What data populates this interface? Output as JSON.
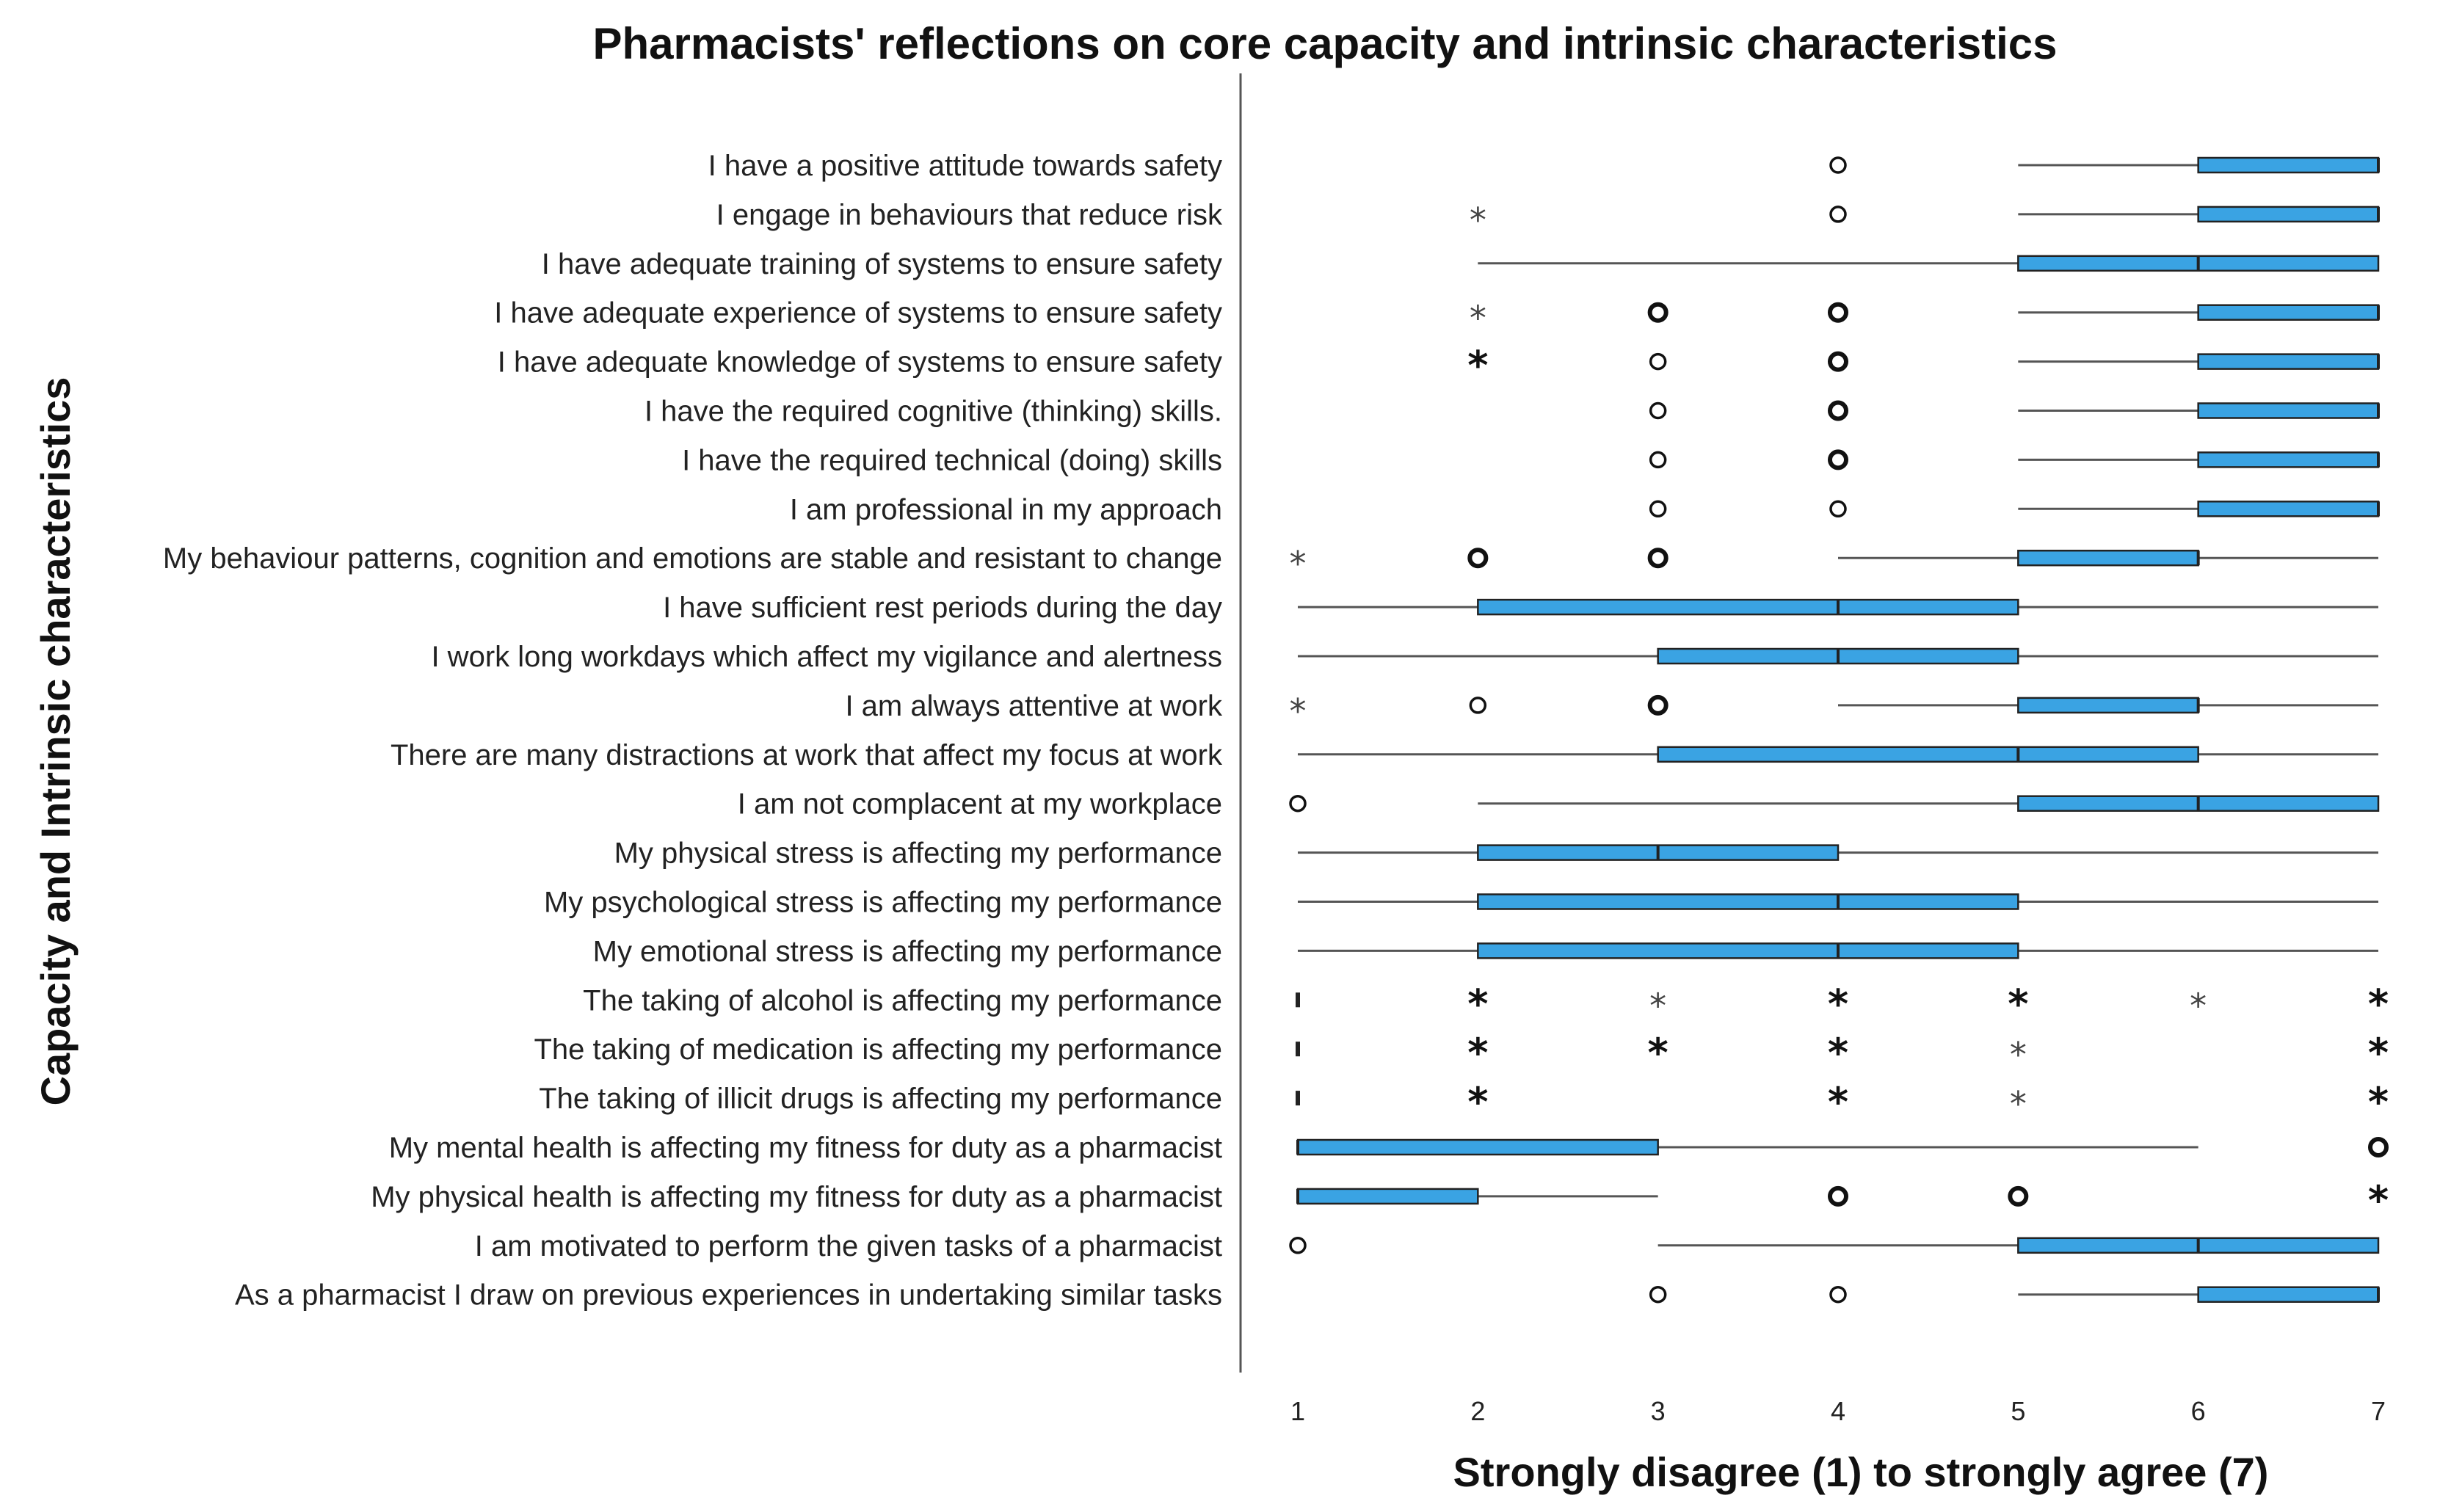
{
  "chart_data": {
    "type": "boxplot",
    "orientation": "horizontal",
    "title": "Pharmacists' reflections on core capacity and intrinsic characteristics",
    "xlabel": "Strongly disagree (1) to strongly agree (7)",
    "ylabel": "Capacity and Intrinsic characteristics",
    "xlim": [
      1,
      7
    ],
    "xticks": [
      "1",
      "2",
      "3",
      "4",
      "5",
      "6",
      "7"
    ],
    "box_color": "#3AA3E3",
    "categories": [
      "I have a positive attitude towards safety",
      "I engage in behaviours that reduce risk",
      "I have adequate training of systems to ensure safety",
      "I have adequate experience of systems to ensure safety",
      "I have adequate knowledge of systems to ensure safety",
      "I have the required cognitive (thinking) skills.",
      "I have the required technical (doing) skills",
      "I am professional in my approach",
      "My behaviour patterns, cognition and emotions are stable and resistant to change",
      "I have sufficient rest periods during the day",
      "I work long workdays which affect my vigilance and alertness",
      "I am always attentive at work",
      "There are many distractions at work that affect my focus at work",
      "I am not complacent at my workplace",
      "My physical stress is affecting my performance",
      "My psychological stress is affecting my performance",
      "My emotional stress is affecting my performance",
      "The taking of alcohol is affecting my performance",
      "The taking of medication is affecting my performance",
      "The taking of illicit drugs is affecting my performance",
      "My mental health is affecting my fitness for duty as a pharmacist",
      "My physical health is affecting my fitness for duty as a pharmacist",
      "I am motivated to perform the given tasks of a pharmacist",
      "As a pharmacist I draw on previous experiences in undertaking similar tasks"
    ],
    "boxes": [
      {
        "min": 5,
        "q1": 6,
        "median": 7,
        "q3": 7,
        "max": 7,
        "outliers": [
          {
            "value": 4,
            "symbol": "circle",
            "bold": false
          }
        ]
      },
      {
        "min": 5,
        "q1": 6,
        "median": 7,
        "q3": 7,
        "max": 7,
        "outliers": [
          {
            "value": 2,
            "symbol": "star",
            "bold": false
          },
          {
            "value": 4,
            "symbol": "circle",
            "bold": false
          }
        ]
      },
      {
        "min": 2,
        "q1": 5,
        "median": 6,
        "q3": 7,
        "max": 7,
        "outliers": []
      },
      {
        "min": 5,
        "q1": 6,
        "median": 7,
        "q3": 7,
        "max": 7,
        "outliers": [
          {
            "value": 2,
            "symbol": "star",
            "bold": false
          },
          {
            "value": 3,
            "symbol": "circle",
            "bold": true
          },
          {
            "value": 4,
            "symbol": "circle",
            "bold": true
          }
        ]
      },
      {
        "min": 5,
        "q1": 6,
        "median": 7,
        "q3": 7,
        "max": 7,
        "outliers": [
          {
            "value": 2,
            "symbol": "star",
            "bold": true
          },
          {
            "value": 3,
            "symbol": "circle",
            "bold": false
          },
          {
            "value": 4,
            "symbol": "circle",
            "bold": true
          }
        ]
      },
      {
        "min": 5,
        "q1": 6,
        "median": 7,
        "q3": 7,
        "max": 7,
        "outliers": [
          {
            "value": 3,
            "symbol": "circle",
            "bold": false
          },
          {
            "value": 4,
            "symbol": "circle",
            "bold": true
          }
        ]
      },
      {
        "min": 5,
        "q1": 6,
        "median": 7,
        "q3": 7,
        "max": 7,
        "outliers": [
          {
            "value": 3,
            "symbol": "circle",
            "bold": false
          },
          {
            "value": 4,
            "symbol": "circle",
            "bold": true
          }
        ]
      },
      {
        "min": 5,
        "q1": 6,
        "median": 7,
        "q3": 7,
        "max": 7,
        "outliers": [
          {
            "value": 3,
            "symbol": "circle",
            "bold": false
          },
          {
            "value": 4,
            "symbol": "circle",
            "bold": false
          }
        ]
      },
      {
        "min": 4,
        "q1": 5,
        "median": 6,
        "q3": 6,
        "max": 7,
        "outliers": [
          {
            "value": 1,
            "symbol": "star",
            "bold": false
          },
          {
            "value": 2,
            "symbol": "circle",
            "bold": true
          },
          {
            "value": 3,
            "symbol": "circle",
            "bold": true
          }
        ]
      },
      {
        "min": 1,
        "q1": 2,
        "median": 4,
        "q3": 5,
        "max": 7,
        "outliers": []
      },
      {
        "min": 1,
        "q1": 3,
        "median": 4,
        "q3": 5,
        "max": 7,
        "outliers": []
      },
      {
        "min": 4,
        "q1": 5,
        "median": 6,
        "q3": 6,
        "max": 7,
        "outliers": [
          {
            "value": 1,
            "symbol": "star",
            "bold": false
          },
          {
            "value": 2,
            "symbol": "circle",
            "bold": false
          },
          {
            "value": 3,
            "symbol": "circle",
            "bold": true
          }
        ]
      },
      {
        "min": 1,
        "q1": 3,
        "median": 5,
        "q3": 6,
        "max": 7,
        "outliers": []
      },
      {
        "min": 2,
        "q1": 5,
        "median": 6,
        "q3": 7,
        "max": 7,
        "outliers": [
          {
            "value": 1,
            "symbol": "circle",
            "bold": false
          }
        ]
      },
      {
        "min": 1,
        "q1": 2,
        "median": 3,
        "q3": 4,
        "max": 7,
        "outliers": []
      },
      {
        "min": 1,
        "q1": 2,
        "median": 4,
        "q3": 5,
        "max": 7,
        "outliers": []
      },
      {
        "min": 1,
        "q1": 2,
        "median": 4,
        "q3": 5,
        "max": 7,
        "outliers": []
      },
      {
        "min": 1,
        "q1": 1,
        "median": 1,
        "q3": 1,
        "max": 1,
        "outliers": [
          {
            "value": 2,
            "symbol": "star",
            "bold": true
          },
          {
            "value": 3,
            "symbol": "star",
            "bold": false
          },
          {
            "value": 4,
            "symbol": "star",
            "bold": true
          },
          {
            "value": 5,
            "symbol": "star",
            "bold": true
          },
          {
            "value": 6,
            "symbol": "star",
            "bold": false
          },
          {
            "value": 7,
            "symbol": "star",
            "bold": true
          }
        ]
      },
      {
        "min": 1,
        "q1": 1,
        "median": 1,
        "q3": 1,
        "max": 1,
        "outliers": [
          {
            "value": 2,
            "symbol": "star",
            "bold": true
          },
          {
            "value": 3,
            "symbol": "star",
            "bold": true
          },
          {
            "value": 4,
            "symbol": "star",
            "bold": true
          },
          {
            "value": 5,
            "symbol": "star",
            "bold": false
          },
          {
            "value": 7,
            "symbol": "star",
            "bold": true
          }
        ]
      },
      {
        "min": 1,
        "q1": 1,
        "median": 1,
        "q3": 1,
        "max": 1,
        "outliers": [
          {
            "value": 2,
            "symbol": "star",
            "bold": true
          },
          {
            "value": 4,
            "symbol": "star",
            "bold": true
          },
          {
            "value": 5,
            "symbol": "star",
            "bold": false
          },
          {
            "value": 7,
            "symbol": "star",
            "bold": true
          }
        ]
      },
      {
        "min": 1,
        "q1": 1,
        "median": 1,
        "q3": 3,
        "max": 6,
        "outliers": [
          {
            "value": 7,
            "symbol": "circle",
            "bold": true
          }
        ]
      },
      {
        "min": 1,
        "q1": 1,
        "median": 1,
        "q3": 2,
        "max": 3,
        "outliers": [
          {
            "value": 4,
            "symbol": "circle",
            "bold": true
          },
          {
            "value": 5,
            "symbol": "circle",
            "bold": true
          },
          {
            "value": 7,
            "symbol": "star",
            "bold": true
          }
        ]
      },
      {
        "min": 3,
        "q1": 5,
        "median": 6,
        "q3": 7,
        "max": 7,
        "outliers": [
          {
            "value": 1,
            "symbol": "circle",
            "bold": false
          }
        ]
      },
      {
        "min": 5,
        "q1": 6,
        "median": 7,
        "q3": 7,
        "max": 7,
        "outliers": [
          {
            "value": 3,
            "symbol": "circle",
            "bold": false
          },
          {
            "value": 4,
            "symbol": "circle",
            "bold": false
          }
        ]
      }
    ]
  }
}
